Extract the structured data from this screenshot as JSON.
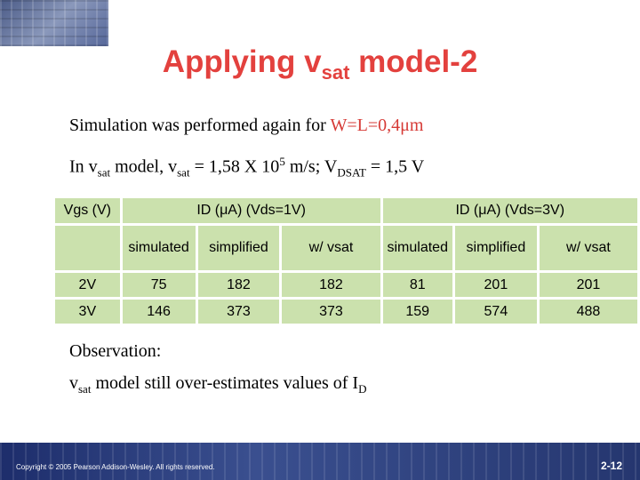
{
  "title": [
    "Applying v",
    "sat",
    " model-2"
  ],
  "line1": [
    "Simulation was performed again for ",
    "W=L=0,4μm"
  ],
  "line2": [
    "In v",
    "sat",
    " model, v",
    "sat",
    " = 1,58 X 10",
    "5",
    " m/s; V",
    "DSAT",
    " = 1,5 V"
  ],
  "table": {
    "header": [
      "Vgs (V)",
      "ID (μA) (Vds=1V)",
      "ID (μA) (Vds=3V)"
    ],
    "subheader": [
      "simulated",
      "simplified",
      "w/ vsat",
      "simulated",
      "simplified",
      "w/ vsat"
    ],
    "rows": [
      [
        "2V",
        75,
        182,
        182,
        81,
        201,
        201
      ],
      [
        "3V",
        146,
        373,
        373,
        159,
        574,
        488
      ]
    ]
  },
  "observation": {
    "heading": "Observation:",
    "text": [
      "v",
      "sat",
      " model still over-estimates values of I",
      "D"
    ]
  },
  "footer": {
    "copyright": "Copyright © 2005 Pearson Addison-Wesley. All rights reserved.",
    "page": "2-12"
  }
}
